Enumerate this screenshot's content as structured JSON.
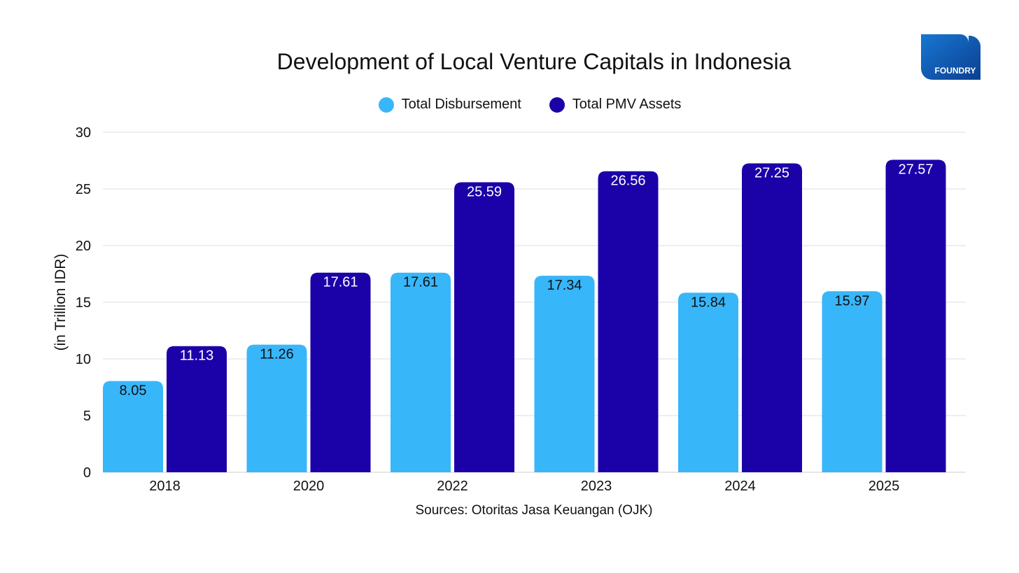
{
  "colors": {
    "disbursement": "#38b6fa",
    "pmv_assets": "#1b02a8",
    "gridline": "#dedede",
    "logo_light": "#1877d2",
    "logo_dark": "#0b3f91"
  },
  "logo": {
    "text": "FOUNDRY"
  },
  "source": "Sources: Otoritas Jasa Keuangan (OJK)",
  "chart_data": {
    "type": "bar",
    "title": "Development of Local Venture Capitals in Indonesia",
    "xlabel": "",
    "ylabel": "(in Trillion IDR)",
    "categories": [
      "2018",
      "2020",
      "2022",
      "2023",
      "2024",
      "2025"
    ],
    "ylim": [
      0,
      30
    ],
    "yticks": [
      0,
      5,
      10,
      15,
      20,
      25,
      30
    ],
    "grid": true,
    "legend_position": "top-center",
    "series": [
      {
        "name": "Total Disbursement",
        "values": [
          8.05,
          11.26,
          17.61,
          17.34,
          15.84,
          15.97
        ]
      },
      {
        "name": "Total PMV Assets",
        "values": [
          11.13,
          17.61,
          25.59,
          26.56,
          27.25,
          27.57
        ]
      }
    ]
  }
}
